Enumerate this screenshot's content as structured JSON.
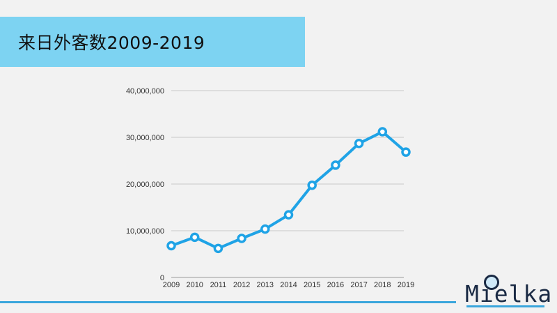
{
  "title": "来日外客数2009-2019",
  "logo": {
    "text": "Mielka"
  },
  "colors": {
    "accent": "#1fa3e6",
    "title_bg": "#7dd3f2",
    "grid": "#c8c8c8"
  },
  "chart_data": {
    "type": "line",
    "title": "",
    "xlabel": "",
    "ylabel": "",
    "categories": [
      "2009",
      "2010",
      "2011",
      "2012",
      "2013",
      "2014",
      "2015",
      "2016",
      "2017",
      "2018",
      "2019"
    ],
    "values": [
      6790000,
      8610000,
      6220000,
      8360000,
      10360000,
      13410000,
      19740000,
      24040000,
      28690000,
      31190000,
      26840000
    ],
    "ylim": [
      0,
      40000000
    ],
    "yticks": [
      0,
      10000000,
      20000000,
      30000000,
      40000000
    ],
    "ytick_labels": [
      "0",
      "10,000,000",
      "20,000,000",
      "30,000,000",
      "40,000,000"
    ],
    "grid": true,
    "legend": "none"
  }
}
